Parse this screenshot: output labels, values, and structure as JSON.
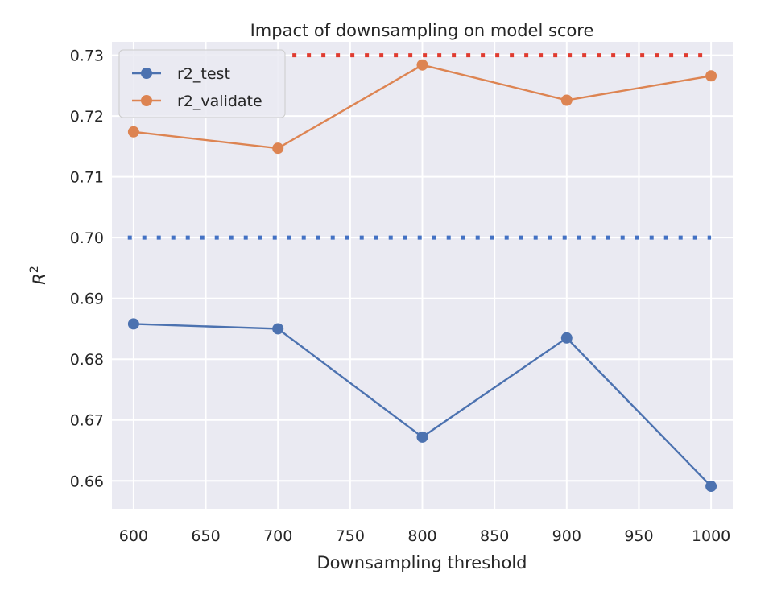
{
  "chart_data": {
    "type": "line",
    "title": "Impact of downsampling on model score",
    "xlabel": "Downsampling threshold",
    "ylabel": "R",
    "ylabel_superscript": "2",
    "x": [
      600,
      700,
      800,
      900,
      1000
    ],
    "xlim": [
      585,
      1015
    ],
    "ylim": [
      0.6554,
      0.7322
    ],
    "xticks": [
      600,
      650,
      700,
      750,
      800,
      850,
      900,
      950,
      1000
    ],
    "xtick_labels": [
      "600",
      "650",
      "700",
      "750",
      "800",
      "850",
      "900",
      "950",
      "1000"
    ],
    "yticks": [
      0.66,
      0.67,
      0.68,
      0.69,
      0.7,
      0.71,
      0.72,
      0.73
    ],
    "ytick_labels": [
      "0.66",
      "0.67",
      "0.68",
      "0.69",
      "0.70",
      "0.71",
      "0.72",
      "0.73"
    ],
    "grid": true,
    "legend_position": "upper-left",
    "series": [
      {
        "name": "r2_test",
        "color": "#4c72b0",
        "marker": "circle",
        "values": [
          0.6858,
          0.685,
          0.6672,
          0.6835,
          0.6591
        ]
      },
      {
        "name": "r2_validate",
        "color": "#dd8452",
        "marker": "circle",
        "values": [
          0.7174,
          0.7147,
          0.7284,
          0.7226,
          0.7266
        ]
      }
    ],
    "reference_lines": [
      {
        "orientation": "horizontal",
        "y": 0.7,
        "x_start": 596,
        "x_end": 1000,
        "style": "dotted",
        "color": "#4472c4"
      },
      {
        "orientation": "horizontal",
        "y": 0.73,
        "x_start": 710,
        "x_end": 1000,
        "style": "dotted",
        "color": "#e03c31"
      }
    ]
  }
}
